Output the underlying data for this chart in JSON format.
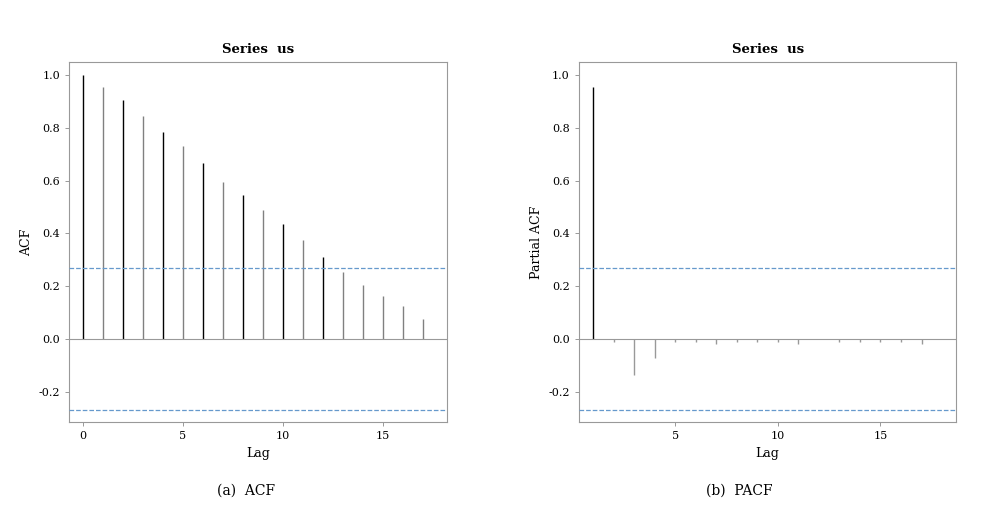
{
  "acf_title": "Series  us",
  "pacf_title": "Series  us",
  "acf_xlabel": "Lag",
  "acf_ylabel": "ACF",
  "pacf_xlabel": "Lag",
  "pacf_ylabel": "Partial ACF",
  "acf_caption": "(a)  ACF",
  "pacf_caption": "(b)  PACF",
  "acf_values": [
    1.0,
    0.955,
    0.905,
    0.845,
    0.785,
    0.73,
    0.665,
    0.595,
    0.545,
    0.49,
    0.435,
    0.375,
    0.31,
    0.255,
    0.205,
    0.165,
    0.125,
    0.075
  ],
  "acf_lags": [
    0,
    1,
    2,
    3,
    4,
    5,
    6,
    7,
    8,
    9,
    10,
    11,
    12,
    13,
    14,
    15,
    16,
    17
  ],
  "acf_colors": [
    "black",
    "gray",
    "black",
    "gray",
    "black",
    "gray",
    "black",
    "gray",
    "black",
    "gray",
    "black",
    "gray",
    "black",
    "gray",
    "gray",
    "gray",
    "gray",
    "gray"
  ],
  "pacf_values": [
    0.955,
    -0.01,
    -0.135,
    -0.07,
    -0.01,
    -0.01,
    -0.02,
    -0.01,
    -0.01,
    -0.01,
    -0.02,
    0.0,
    -0.01,
    -0.01,
    -0.01,
    -0.01,
    -0.02
  ],
  "pacf_lags": [
    1,
    2,
    3,
    4,
    5,
    6,
    7,
    8,
    9,
    10,
    11,
    12,
    13,
    14,
    15,
    16,
    17
  ],
  "ci_upper": 0.268,
  "ci_lower": -0.268,
  "acf_ylim": [
    -0.315,
    1.05
  ],
  "pacf_ylim": [
    -0.315,
    1.05
  ],
  "acf_yticks": [
    -0.2,
    0.0,
    0.2,
    0.4,
    0.6,
    0.8,
    1.0
  ],
  "pacf_yticks": [
    -0.2,
    0.0,
    0.2,
    0.4,
    0.6,
    0.8,
    1.0
  ],
  "acf_xticks": [
    0,
    5,
    10,
    15
  ],
  "pacf_xticks": [
    5,
    10,
    15
  ],
  "acf_xlim": [
    -0.7,
    18.2
  ],
  "pacf_xlim": [
    0.3,
    18.7
  ],
  "background_color": "#ffffff",
  "bar_color_gray": "#999999",
  "bar_color_black": "#000000",
  "ci_color": "#6699cc",
  "spine_color": "#999999",
  "zero_line_color": "#999999"
}
